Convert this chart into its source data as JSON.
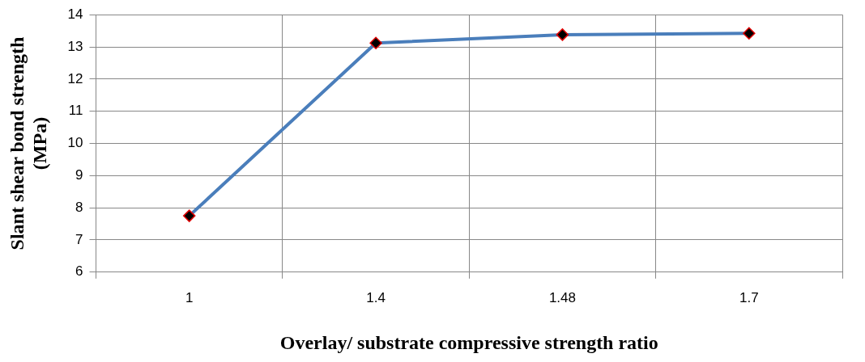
{
  "chart_data": {
    "type": "line",
    "xlabel": "Overlay/ substrate compressive strength ratio",
    "ylabel": "Slant shear bond strength (MPa)",
    "categories": [
      "1",
      "1.4",
      "1.48",
      "1.7"
    ],
    "series": [
      {
        "color": "#4a7ebb",
        "values": [
          7.75,
          13.12,
          13.38,
          13.42
        ]
      }
    ],
    "ylim": [
      6,
      14
    ],
    "yticks": [
      6,
      7,
      8,
      9,
      10,
      11,
      12,
      13,
      14
    ],
    "grid": true,
    "marker": "diamond",
    "legend": false
  }
}
